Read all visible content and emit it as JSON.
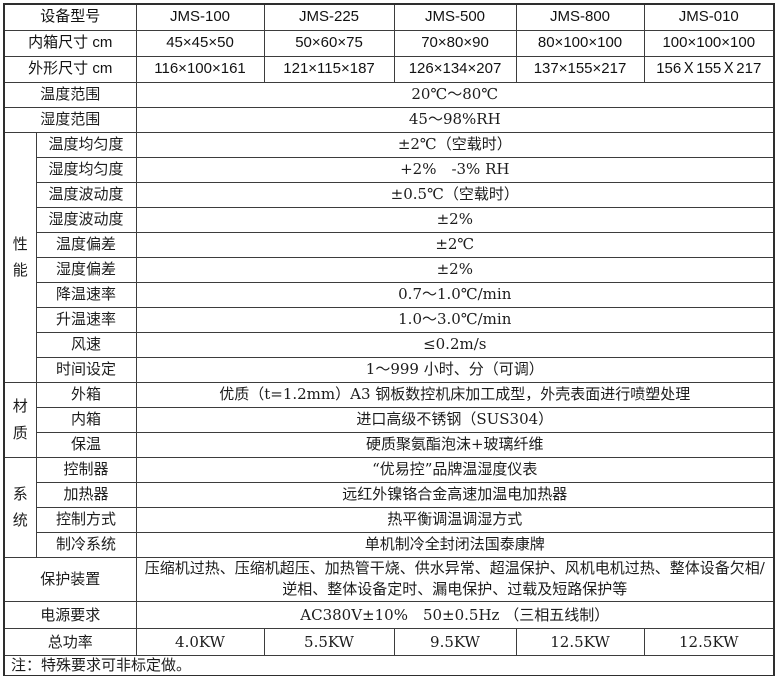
{
  "table": {
    "header_rows": [
      {
        "label": "设备型号",
        "values": [
          "JMS-100",
          "JMS-225",
          "JMS-500",
          "JMS-800",
          "JMS-010"
        ]
      },
      {
        "label": "内箱尺寸 cm",
        "values": [
          "45×45×50",
          "50×60×75",
          "70×80×90",
          "80×100×100",
          "100×100×100"
        ]
      },
      {
        "label": "外形尺寸 cm",
        "values": [
          "116×100×161",
          "121×115×187",
          "126×134×207",
          "137×155×217",
          "156Ｘ155Ｘ217"
        ]
      }
    ],
    "full_rows": [
      {
        "label": "温度范围",
        "value": "20℃～80℃"
      },
      {
        "label": "湿度范围",
        "value": "45～98%RH"
      }
    ],
    "groups": [
      {
        "name": "性能",
        "rows": [
          {
            "label": "温度均匀度",
            "value": "±2℃（空载时）"
          },
          {
            "label": "湿度均匀度",
            "value": "+2%　-3% RH"
          },
          {
            "label": "温度波动度",
            "value": "±0.5℃（空载时）"
          },
          {
            "label": "湿度波动度",
            "value": "±2%"
          },
          {
            "label": "温度偏差",
            "value": "±2℃"
          },
          {
            "label": "湿度偏差",
            "value": "±2%"
          },
          {
            "label": "降温速率",
            "value": "0.7～1.0℃/min"
          },
          {
            "label": "升温速率",
            "value": "1.0～3.0℃/min"
          },
          {
            "label": "风速",
            "value": "≤0.2m/s"
          },
          {
            "label": "时间设定",
            "value": "1～999 小时、分（可调）"
          }
        ]
      },
      {
        "name": "材质",
        "rows": [
          {
            "label": "外箱",
            "value": "优质（t=1.2mm）A3 钢板数控机床加工成型，外壳表面进行喷塑处理"
          },
          {
            "label": "内箱",
            "value": "进口高级不锈钢（SUS304）"
          },
          {
            "label": "保温",
            "value": "硬质聚氨酯泡沫+玻璃纤维"
          }
        ]
      },
      {
        "name": "系统",
        "rows": [
          {
            "label": "控制器",
            "value": "“优易控”品牌温湿度仪表"
          },
          {
            "label": "加热器",
            "value": "远红外镍铬合金高速加温电加热器"
          },
          {
            "label": "控制方式",
            "value": "热平衡调温调湿方式"
          },
          {
            "label": "制冷系统",
            "value": "单机制冷全封闭法国泰康牌"
          }
        ]
      }
    ],
    "protection_row": {
      "label": "保护装置",
      "value": "压缩机过热、压缩机超压、加热管干烧、供水异常、超温保护、风机电机过热、整体设备欠相/逆相、整体设备定时、漏电保护、过载及短路保护等"
    },
    "power_row": {
      "label": "电源要求",
      "value": "AC380V±10%　50±0.5Hz （三相五线制）"
    },
    "total_power_row": {
      "label": "总功率",
      "values": [
        "4.0KW",
        "5.5KW",
        "9.5KW",
        "12.5KW",
        "12.5KW"
      ]
    },
    "note": "注：特殊要求可非标定做。"
  },
  "colors": {
    "border": "#3d3d3d",
    "outer_border": "#2e2e2e",
    "text": "#1c1c1c",
    "background": "#ffffff"
  }
}
